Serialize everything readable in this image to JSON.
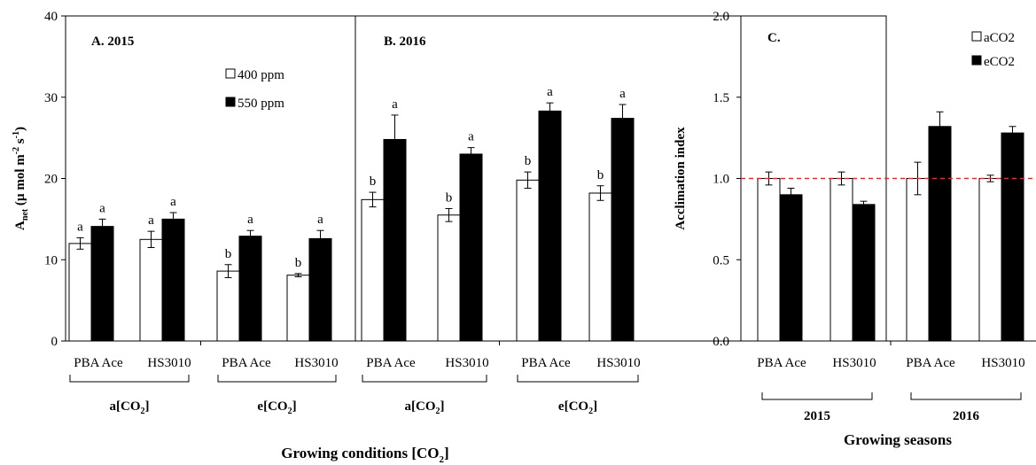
{
  "chart_data": [
    {
      "type": "bar",
      "panel": "left",
      "ylabel_main": "A",
      "ylabel_sub": "net",
      "ylabel_rest": " (µ mol  m",
      "ylabel_sup1": "-2",
      "ylabel_s": " s",
      "ylabel_sup2": "-1",
      "ylabel_end": ")",
      "ylim": [
        0,
        40
      ],
      "yticks": [
        "0",
        "10",
        "20",
        "30",
        "40"
      ],
      "xlabel_main": "Growing conditions [CO",
      "xlabel_sub": "2",
      "xlabel_end": "]",
      "legend": [
        {
          "name": "400 ppm",
          "color": "#ffffff"
        },
        {
          "name": "550 ppm",
          "color": "#000000"
        }
      ],
      "sub_panels": [
        {
          "title": "A. 2015",
          "groups": [
            {
              "bracket_main": "a[CO",
              "bracket_sub": "2",
              "bracket_end": "]",
              "categories": [
                "PBA Ace",
                "HS3010"
              ]
            },
            {
              "bracket_main": "e[CO",
              "bracket_sub": "2",
              "bracket_end": "]",
              "categories": [
                "PBA Ace",
                "HS3010"
              ]
            }
          ],
          "series": [
            {
              "name": "400 ppm",
              "values": [
                12.0,
                12.5,
                8.6,
                8.1
              ],
              "errors": [
                0.7,
                1.0,
                0.8,
                0.2
              ],
              "letters": [
                "a",
                "a",
                "b",
                "b"
              ]
            },
            {
              "name": "550 ppm",
              "values": [
                14.1,
                15.0,
                12.9,
                12.6
              ],
              "errors": [
                0.9,
                0.8,
                0.7,
                1.0
              ],
              "letters": [
                "a",
                "a",
                "a",
                "a"
              ]
            }
          ]
        },
        {
          "title": "B. 2016",
          "groups": [
            {
              "bracket_main": "a[CO",
              "bracket_sub": "2",
              "bracket_end": "]",
              "categories": [
                "PBA Ace",
                "HS3010"
              ]
            },
            {
              "bracket_main": "e[CO",
              "bracket_sub": "2",
              "bracket_end": "]",
              "categories": [
                "PBA Ace",
                "HS3010"
              ]
            }
          ],
          "series": [
            {
              "name": "400 ppm",
              "values": [
                17.4,
                15.5,
                19.8,
                18.2
              ],
              "errors": [
                0.9,
                0.8,
                1.0,
                0.9
              ],
              "letters": [
                "b",
                "b",
                "b",
                "b"
              ]
            },
            {
              "name": "550 ppm",
              "values": [
                24.8,
                23.0,
                28.3,
                27.4
              ],
              "errors": [
                3.0,
                0.8,
                1.0,
                1.7
              ],
              "letters": [
                "a",
                "a",
                "a",
                "a"
              ]
            }
          ]
        }
      ]
    },
    {
      "type": "bar",
      "panel": "right",
      "title": "C.",
      "ylabel": "Acclimation index",
      "xlabel": "Growing seasons",
      "ylim": [
        0,
        2
      ],
      "yticks": [
        "0.0",
        "0.5",
        "1.0",
        "1.5",
        "2.0"
      ],
      "reference_line": {
        "y": 1.0,
        "color": "#e0302a",
        "style": "dashed"
      },
      "legend": [
        {
          "name": "aCO2",
          "color": "#ffffff"
        },
        {
          "name": "eCO2",
          "color": "#000000"
        }
      ],
      "groups": [
        {
          "name": "2015",
          "categories": [
            "PBA Ace",
            "HS3010"
          ]
        },
        {
          "name": "2016",
          "categories": [
            "PBA Ace",
            "HS3010"
          ]
        }
      ],
      "series": [
        {
          "name": "aCO2",
          "values": [
            1.0,
            1.0,
            1.0,
            1.0
          ],
          "errors": [
            0.04,
            0.04,
            0.1,
            0.02
          ]
        },
        {
          "name": "eCO2",
          "values": [
            0.9,
            0.84,
            1.32,
            1.28
          ],
          "errors": [
            0.04,
            0.02,
            0.09,
            0.04
          ]
        }
      ]
    }
  ]
}
